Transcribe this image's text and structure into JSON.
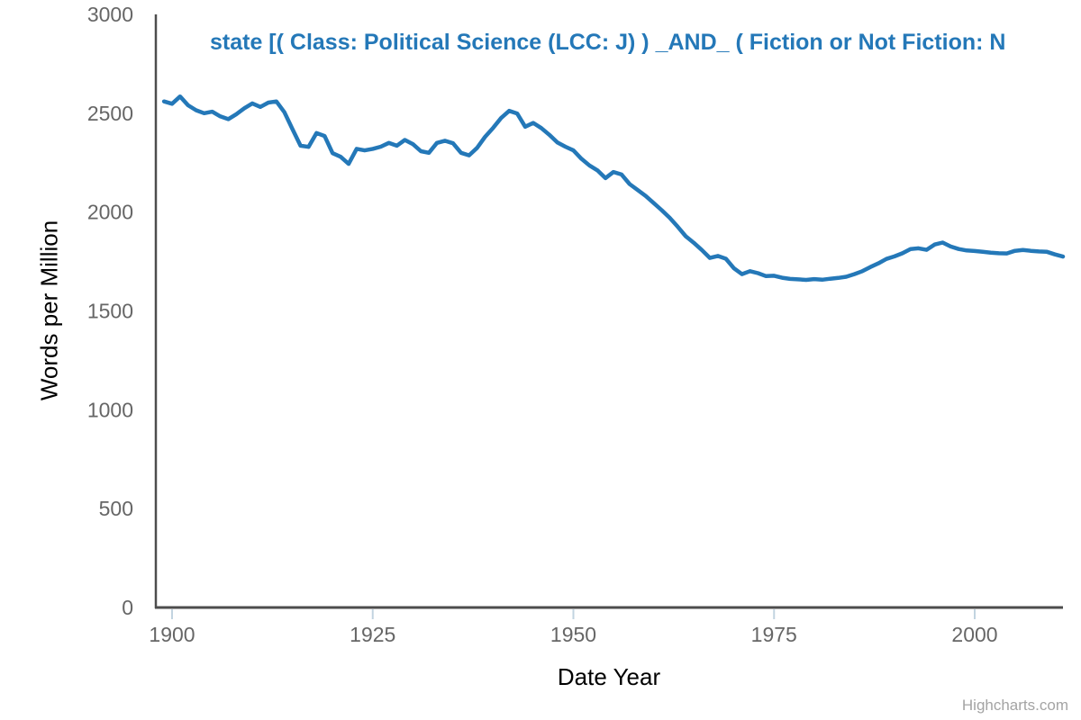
{
  "title": {
    "text": "state [( Class: Political Science (LCC: J) ) _AND_ ( Fiction or Not Fiction: N"
  },
  "y_axis": {
    "title": "Words per Million",
    "ticks": [
      0,
      500,
      1000,
      1500,
      2000,
      2500,
      3000
    ]
  },
  "x_axis": {
    "title": "Date Year",
    "ticks": [
      1900,
      1925,
      1950,
      1975,
      2000
    ]
  },
  "credits": {
    "label": "Highcharts.com"
  },
  "colors": {
    "series_line": "#2478b8",
    "title_text": "#2478b8",
    "axis_line": "#4d4d4d",
    "tick_mark": "#c2d4e0",
    "tick_label": "#666666",
    "credits_text": "#a4a4a4"
  },
  "chart_data": {
    "type": "line",
    "title": "state [( Class: Political Science (LCC: J) ) _AND_ ( Fiction or Not Fiction: N",
    "xlabel": "Date Year",
    "ylabel": "Words per Million",
    "xlim": [
      1899,
      2011
    ],
    "ylim": [
      0,
      3000
    ],
    "grid": false,
    "legend": "none",
    "x": [
      1899,
      1900,
      1901,
      1902,
      1903,
      1904,
      1905,
      1906,
      1907,
      1908,
      1909,
      1910,
      1911,
      1912,
      1913,
      1914,
      1915,
      1916,
      1917,
      1918,
      1919,
      1920,
      1921,
      1922,
      1923,
      1924,
      1925,
      1926,
      1927,
      1928,
      1929,
      1930,
      1931,
      1932,
      1933,
      1934,
      1935,
      1936,
      1937,
      1938,
      1939,
      1940,
      1941,
      1942,
      1943,
      1944,
      1945,
      1946,
      1947,
      1948,
      1949,
      1950,
      1951,
      1952,
      1953,
      1954,
      1955,
      1956,
      1957,
      1958,
      1959,
      1960,
      1961,
      1962,
      1963,
      1964,
      1965,
      1966,
      1967,
      1968,
      1969,
      1970,
      1971,
      1972,
      1973,
      1974,
      1975,
      1976,
      1977,
      1978,
      1979,
      1980,
      1981,
      1982,
      1983,
      1984,
      1985,
      1986,
      1987,
      1988,
      1989,
      1990,
      1991,
      1992,
      1993,
      1994,
      1995,
      1996,
      1997,
      1998,
      1999,
      2000,
      2001,
      2002,
      2003,
      2004,
      2005,
      2006,
      2007,
      2008,
      2009,
      2010,
      2011
    ],
    "values": [
      2560,
      2548,
      2585,
      2540,
      2515,
      2500,
      2508,
      2484,
      2470,
      2495,
      2525,
      2550,
      2532,
      2554,
      2560,
      2505,
      2420,
      2336,
      2330,
      2400,
      2385,
      2298,
      2280,
      2244,
      2320,
      2312,
      2320,
      2331,
      2350,
      2336,
      2365,
      2344,
      2308,
      2300,
      2350,
      2361,
      2348,
      2300,
      2287,
      2325,
      2381,
      2426,
      2476,
      2512,
      2499,
      2432,
      2451,
      2425,
      2391,
      2352,
      2331,
      2312,
      2270,
      2236,
      2211,
      2172,
      2203,
      2190,
      2142,
      2112,
      2082,
      2046,
      2010,
      1971,
      1926,
      1878,
      1845,
      1808,
      1768,
      1778,
      1764,
      1716,
      1686,
      1701,
      1691,
      1676,
      1678,
      1668,
      1662,
      1660,
      1657,
      1661,
      1658,
      1663,
      1667,
      1673,
      1686,
      1701,
      1722,
      1741,
      1763,
      1776,
      1792,
      1813,
      1817,
      1809,
      1836,
      1846,
      1826,
      1813,
      1806,
      1803,
      1799,
      1795,
      1792,
      1791,
      1804,
      1808,
      1804,
      1801,
      1799,
      1786,
      1775
    ]
  }
}
